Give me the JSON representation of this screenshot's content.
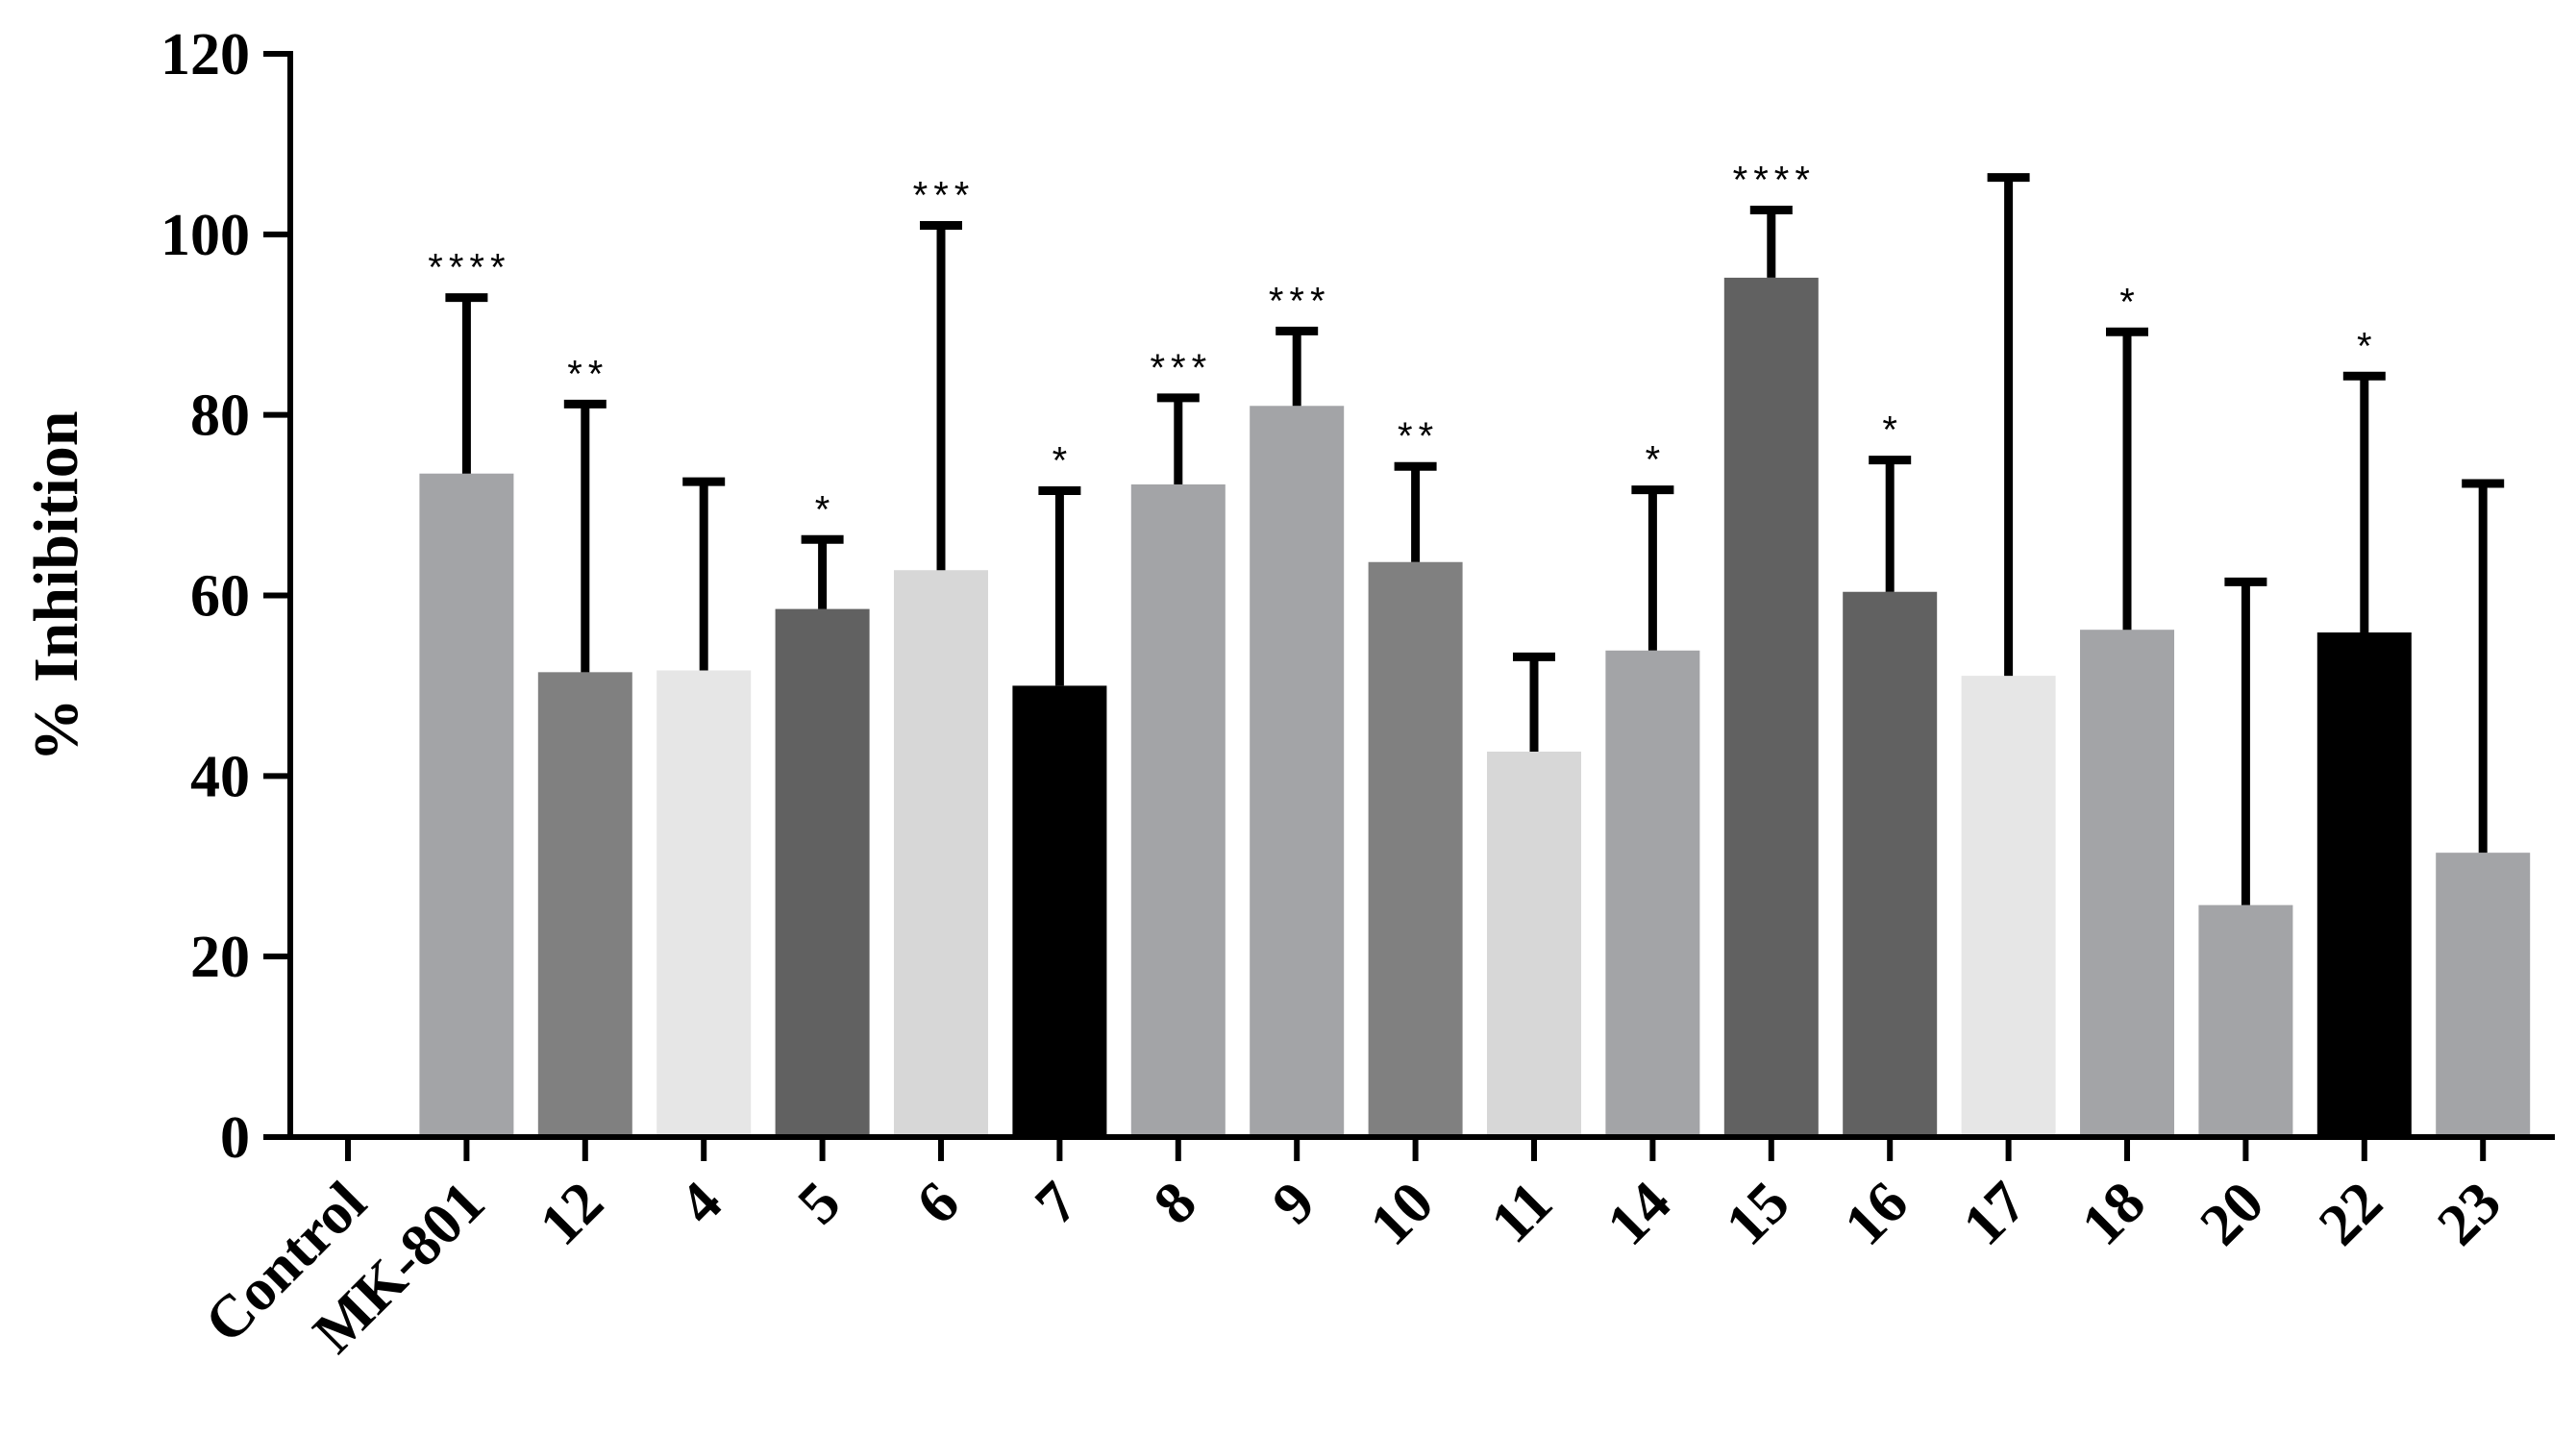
{
  "chart_data": {
    "type": "bar",
    "ylabel": "% Inhibition",
    "xlabel": "",
    "title": "",
    "ylim": [
      0,
      120
    ],
    "yticks": [
      0,
      20,
      40,
      60,
      80,
      100,
      120
    ],
    "categories": [
      "Control",
      "MK-801",
      "12",
      "4",
      "5",
      "6",
      "7",
      "8",
      "9",
      "10",
      "11",
      "14",
      "15",
      "16",
      "17",
      "18",
      "20",
      "22",
      "23"
    ],
    "values": [
      0,
      73.5,
      51.5,
      51.7,
      58.5,
      62.8,
      50.0,
      72.3,
      81.0,
      63.7,
      42.7,
      53.9,
      95.2,
      60.4,
      51.1,
      56.2,
      25.7,
      55.9,
      31.5
    ],
    "error_upper": [
      null,
      93.0,
      81.2,
      72.6,
      66.2,
      101.0,
      71.6,
      81.9,
      89.3,
      74.3,
      53.2,
      71.7,
      102.7,
      75.0,
      106.3,
      89.2,
      61.5,
      84.3,
      72.4
    ],
    "significance": [
      "",
      "****",
      "**",
      "",
      "*",
      "***",
      "*",
      "***",
      "***",
      "**",
      "",
      "*",
      "****",
      "*",
      "",
      "*",
      "",
      "*",
      ""
    ],
    "colors": [
      "#ffffff",
      "#a3a4a7",
      "#808080",
      "#e6e6e6",
      "#616161",
      "#d7d7d7",
      "#000000",
      "#a3a4a7",
      "#a3a4a7",
      "#808080",
      "#d7d7d7",
      "#a3a4a7",
      "#616161",
      "#616161",
      "#e6e6e6",
      "#a3a4a7",
      "#a3a4a7",
      "#000000",
      "#a3a4a7"
    ],
    "grid": false,
    "legend": "none"
  }
}
